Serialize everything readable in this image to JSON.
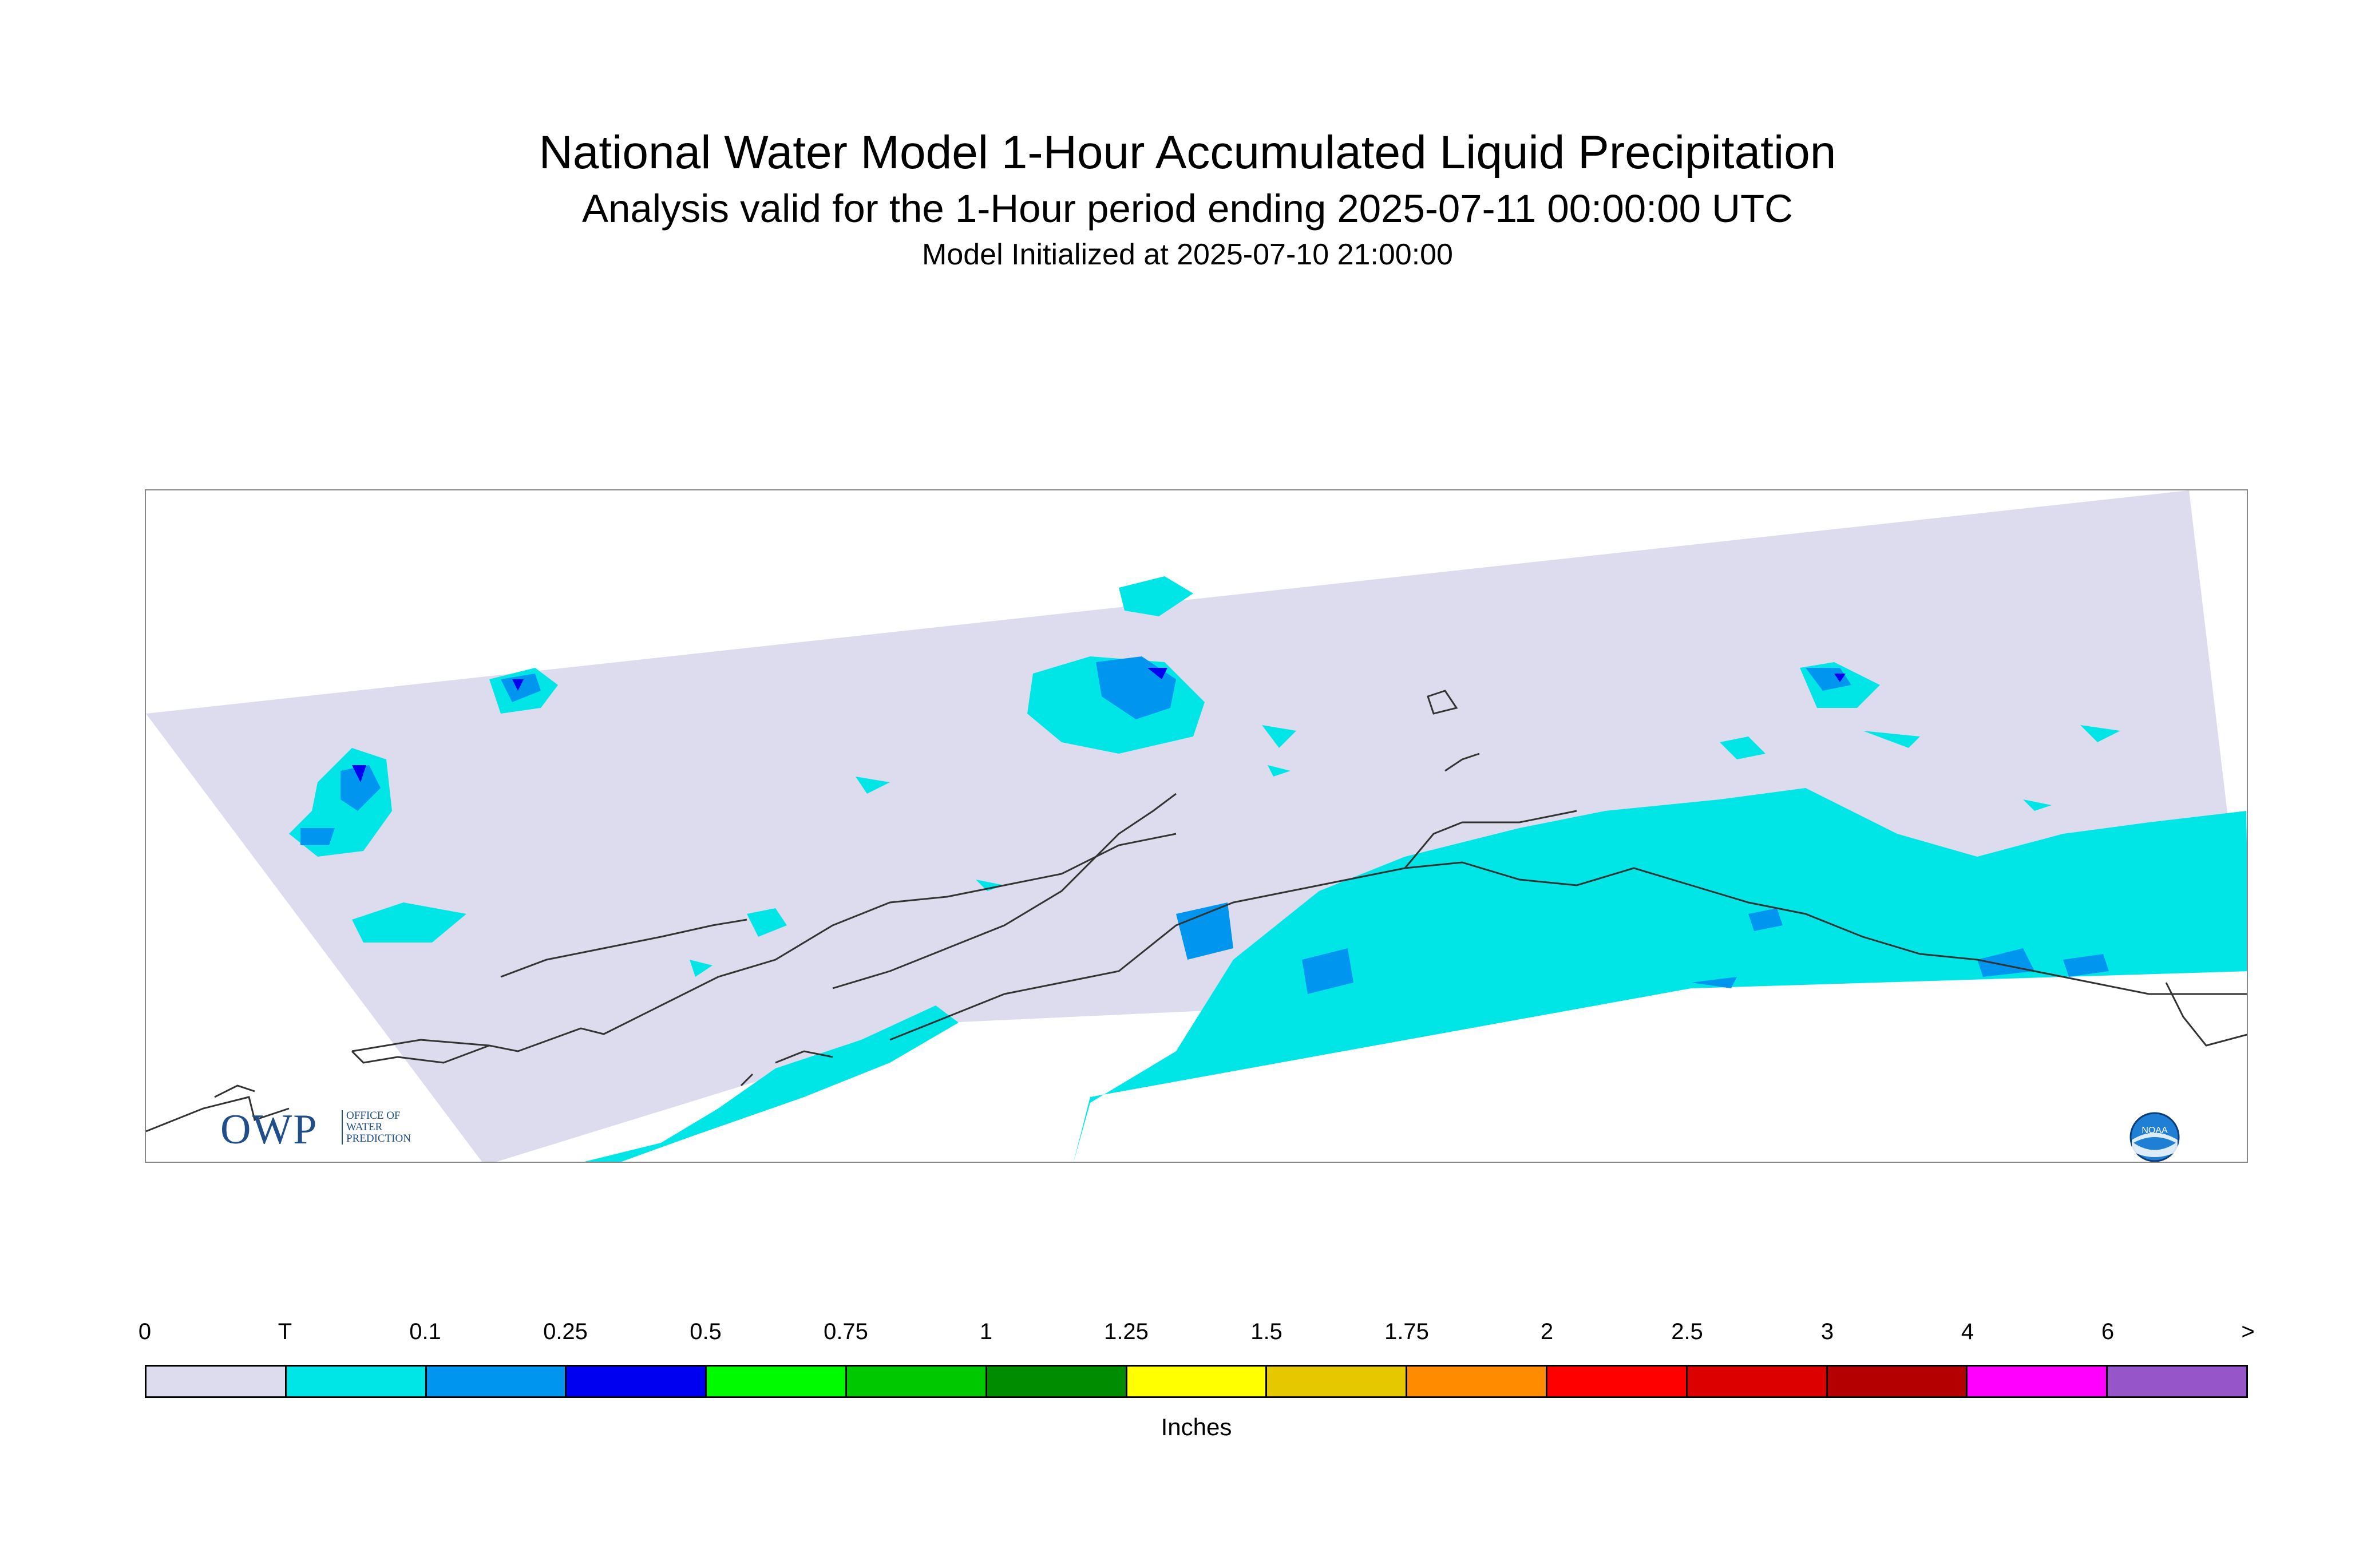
{
  "header": {
    "title": "National Water Model 1-Hour Accumulated Liquid Precipitation",
    "subtitle": "Analysis valid for the 1-Hour period ending 2025-07-11 00:00:00 UTC",
    "init": "Model Initialized at 2025-07-10 21:00:00"
  },
  "logos": {
    "owp_text": "OWP",
    "owp_line1": "OFFICE OF",
    "owp_line2": "WATER",
    "owp_line3": "PREDICTION",
    "noaa_text": "NOAA"
  },
  "legend": {
    "units": "Inches",
    "tick_labels": [
      "0",
      "T",
      "0.1",
      "0.25",
      "0.5",
      "0.75",
      "1",
      "1.25",
      "1.5",
      "1.75",
      "2",
      "2.5",
      "3",
      "4",
      "6",
      ">"
    ],
    "colors": [
      "#dcdcee",
      "#00e6e6",
      "#0096f0",
      "#0000f0",
      "#00fa00",
      "#00c800",
      "#008c00",
      "#ffff00",
      "#e6c800",
      "#ff8c00",
      "#ff0000",
      "#dc0000",
      "#b40000",
      "#ff00ff",
      "#9655c8"
    ]
  },
  "map": {
    "zero_color": "#dcdcee",
    "trace_color": "#00e6e6",
    "light_blue_color": "#0096f0",
    "blue_color": "#0000f0",
    "coast_color": "#333333"
  }
}
